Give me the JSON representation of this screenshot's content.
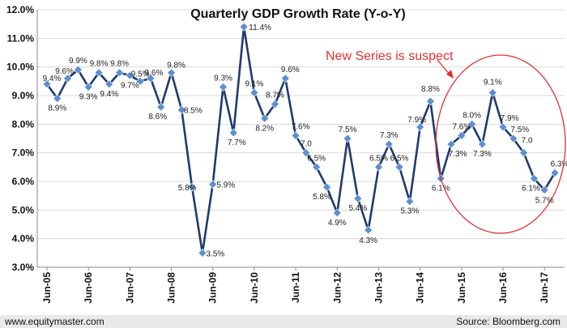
{
  "chart_data": {
    "type": "line",
    "title": "Quarterly GDP Growth Rate (Y-o-Y)",
    "xlabel": "",
    "ylabel": "",
    "ylim": [
      3.0,
      12.0
    ],
    "y_ticks": [
      "3.0%",
      "4.0%",
      "5.0%",
      "6.0%",
      "7.0%",
      "8.0%",
      "9.0%",
      "10.0%",
      "11.0%",
      "12.0%"
    ],
    "x_tick_labels": [
      "Jun-05",
      "Jun-06",
      "Jun-07",
      "Jun-08",
      "Jun-09",
      "Jun-10",
      "Jun-11",
      "Jun-12",
      "Jun-13",
      "Jun-14",
      "Jun-15",
      "Jun-16",
      "Jun-17"
    ],
    "series": [
      {
        "values": [
          9.4,
          8.9,
          9.6,
          9.9,
          9.3,
          9.8,
          9.4,
          9.8,
          9.7,
          9.5,
          9.6,
          8.6,
          9.8,
          8.5,
          5.8,
          3.5,
          5.9,
          9.3,
          7.7,
          11.4,
          9.1,
          8.2,
          8.7,
          9.6,
          7.6,
          7.0,
          6.5,
          5.8,
          4.9,
          7.5,
          5.4,
          4.3,
          6.5,
          7.3,
          6.5,
          5.3,
          7.9,
          8.8,
          6.1,
          7.3,
          7.6,
          8.0,
          7.3,
          9.1,
          7.9,
          7.5,
          7.0,
          6.1,
          5.7,
          6.3
        ],
        "labels": [
          "9.4%",
          "8.9%",
          "9.6%",
          "9.9%",
          "9.3%",
          "9.8%",
          "9.4%",
          "9.8%",
          "9.7%",
          "9.5%",
          "9.6%",
          "8.6%",
          "9.8%",
          "8.5%",
          "5.8%",
          "3.5%",
          "5.9%",
          "9.3%",
          "7.7%",
          "11.4%",
          "9.1%",
          "8.2%",
          "8.7%",
          "9.6%",
          "7.6%",
          "7.0",
          "6.5%",
          "5.8%",
          "4.9%",
          "7.5%",
          "5.4%",
          "4.3%",
          "6.5%",
          "7.3%",
          "6.5%",
          "5.3%",
          "7.9%",
          "8.8%",
          "6.1%",
          "7.3%",
          "7.6%",
          "8.0%",
          "7.3%",
          "9.1%",
          "7.9%",
          "7.5%",
          "7.0",
          "6.1%",
          "5.7%",
          "6.3%"
        ],
        "color": "#1f3a6e",
        "marker_color": "#5b8fd1"
      }
    ],
    "annotation": {
      "text": "New Series is suspect",
      "color": "#e03131"
    },
    "grid": "horizontal"
  },
  "footer": {
    "source_left": "www.equitymaster.com",
    "source_right": "Source: Bloomberg.com"
  }
}
